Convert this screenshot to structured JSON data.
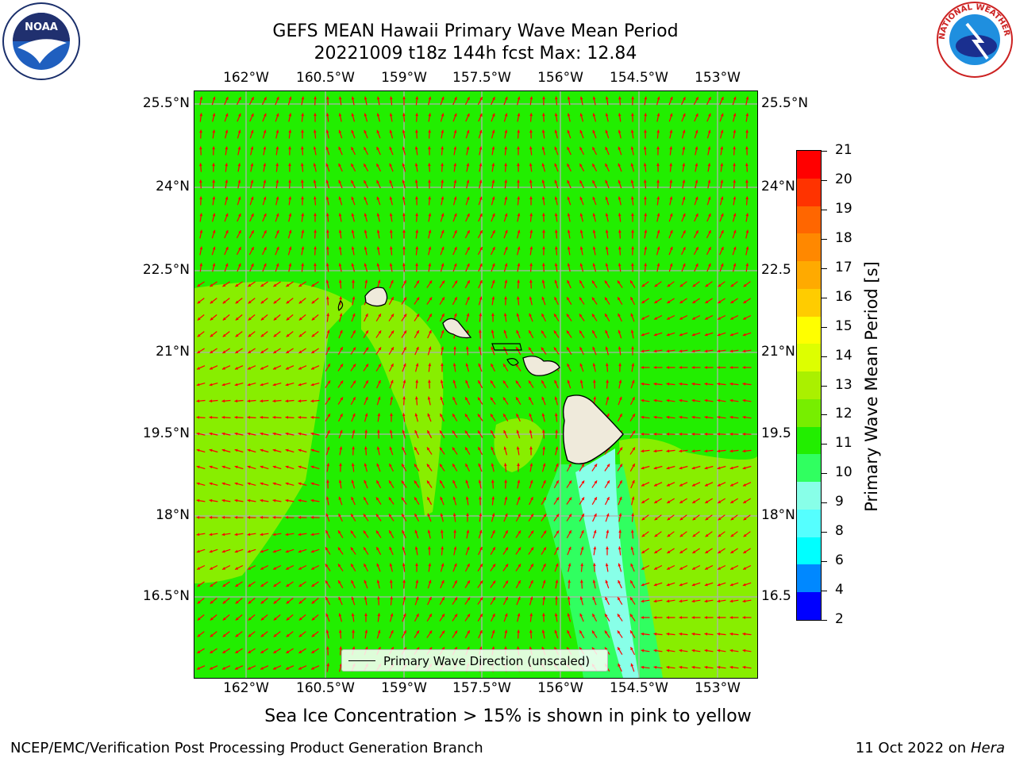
{
  "header": {
    "title_line1": "GEFS MEAN Hawaii Primary Wave Mean Period",
    "title_line2": "20221009 t18z 144h fcst   Max: 12.84"
  },
  "logos": {
    "noaa_text": "NOAA",
    "nws_text": "NATIONAL WEATHER SERVICE"
  },
  "map": {
    "lon_labels": [
      "162°W",
      "160.5°W",
      "159°W",
      "157.5°W",
      "156°W",
      "154.5°W",
      "153°W"
    ],
    "lat_labels_left": [
      "25.5°N",
      "24°N",
      "22.5°N",
      "21°N",
      "19.5°N",
      "18°N",
      "16.5°N"
    ],
    "lat_labels_right": [
      "25.5°N",
      "24°N",
      "22.5",
      "21°N",
      "19.5",
      "18°N",
      "16.5"
    ],
    "legend_label": "Primary Wave Direction (unscaled)",
    "colors": {
      "background_period_11_12": "#22ee00",
      "period_12_13": "#88ee00",
      "period_13_14": "#aaf000",
      "period_10_11": "#30ff60",
      "period_9_10": "#88ffe8",
      "arrows": "#ff0000",
      "land": "#efeadb",
      "gridlines": "#b0b0b0"
    }
  },
  "colorbar": {
    "title": "Primary Wave Mean Period [s]",
    "tick_labels": [
      "21",
      "20",
      "19",
      "18",
      "17",
      "16",
      "15",
      "14",
      "13",
      "12",
      "11",
      "10",
      "9",
      "8",
      "6",
      "4",
      "2"
    ],
    "colors_top_to_bottom": [
      "#ff0000",
      "#ff3300",
      "#ff6600",
      "#ff8800",
      "#ffaa00",
      "#ffcc00",
      "#ffff00",
      "#ddff00",
      "#aaf000",
      "#77ee00",
      "#22ee00",
      "#30ff60",
      "#88ffe8",
      "#55ffff",
      "#00ffff",
      "#0088ff",
      "#0000ff"
    ]
  },
  "note": "Sea Ice Concentration > 15% is shown in pink to yellow",
  "footer": {
    "left": "NCEP/EMC/Verification Post Processing Product Generation Branch",
    "right_prefix": "11 Oct 2022 on ",
    "right_italic": "Hera"
  }
}
